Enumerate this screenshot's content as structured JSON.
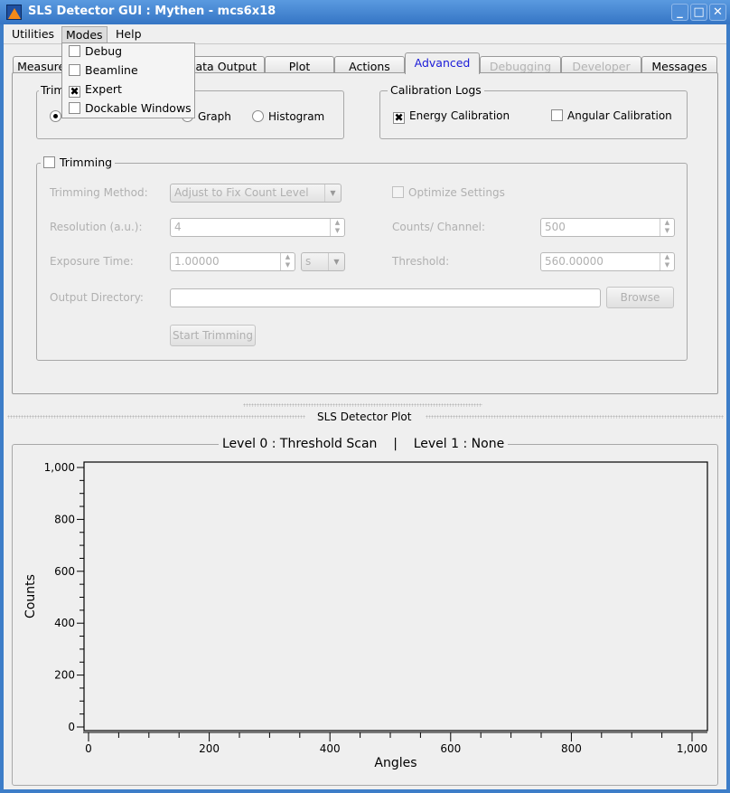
{
  "window": {
    "title": "SLS Detector GUI : Mythen - mcs6x18",
    "controls": [
      "minimize",
      "maximize",
      "close"
    ]
  },
  "menubar": {
    "items": [
      {
        "label": "Utilities"
      },
      {
        "label": "Modes"
      },
      {
        "label": "Help"
      }
    ]
  },
  "modes_menu": {
    "items": [
      {
        "label": "Debug",
        "checked": false
      },
      {
        "label": "Beamline",
        "checked": false
      },
      {
        "label": "Expert",
        "checked": true
      },
      {
        "label": "Dockable Windows",
        "checked": false
      }
    ]
  },
  "tabs": [
    {
      "label": "Measurement"
    },
    {
      "label": ""
    },
    {
      "label": "Data Output"
    },
    {
      "label": "Plot"
    },
    {
      "label": "Actions"
    },
    {
      "label": "Advanced",
      "selected": true
    },
    {
      "label": "Debugging",
      "disabled": true
    },
    {
      "label": "Developer",
      "disabled": true
    },
    {
      "label": "Messages"
    }
  ],
  "trim_logs": {
    "title": "Trim",
    "options": [
      {
        "label": "",
        "selected": true
      },
      {
        "label": "Graph"
      },
      {
        "label": "Histogram"
      }
    ]
  },
  "calibration": {
    "title": "Calibration Logs",
    "energy": {
      "label": "Energy Calibration",
      "checked": true
    },
    "angular": {
      "label": "Angular Calibration",
      "checked": false
    }
  },
  "trimming": {
    "title": "Trimming",
    "checked": false,
    "method_label": "Trimming Method:",
    "method_value": "Adjust to Fix Count Level",
    "optimize_label": "Optimize Settings",
    "resolution_label": "Resolution (a.u.):",
    "resolution_value": "4",
    "counts_label": "Counts/ Channel:",
    "counts_value": "500",
    "exposure_label": "Exposure Time:",
    "exposure_value": "1.00000",
    "exposure_unit": "s",
    "threshold_label": "Threshold:",
    "threshold_value": "560.00000",
    "outdir_label": "Output Directory:",
    "outdir_value": "",
    "browse": "Browse",
    "start": "Start Trimming"
  },
  "dock": {
    "title": "SLS Detector Plot"
  },
  "plot": {
    "group_title": "Level 0 : Threshold Scan    |    Level 1 : None"
  },
  "chart_data": {
    "type": "line",
    "series": [],
    "xlabel": "Angles",
    "ylabel": "Counts",
    "xlim": [
      0,
      1000
    ],
    "ylim": [
      0,
      1000
    ],
    "xticks": [
      "0",
      "200",
      "400",
      "600",
      "800",
      "1,000"
    ],
    "yticks": [
      "0",
      "200",
      "400",
      "600",
      "800",
      "1,000"
    ],
    "grid": false
  }
}
